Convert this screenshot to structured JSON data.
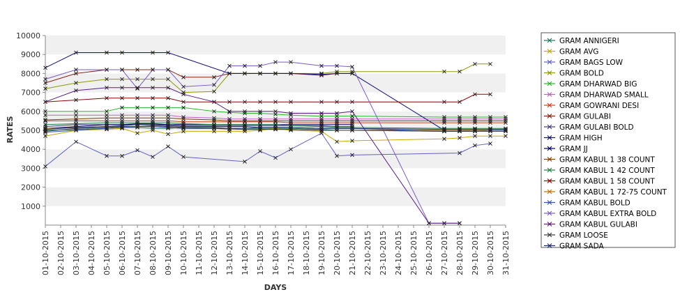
{
  "chart_data": {
    "type": "line",
    "title": "",
    "xlabel": "DAYS",
    "ylabel": "RATES",
    "ylim": [
      0,
      10000
    ],
    "yticks": [
      1000,
      2000,
      3000,
      4000,
      5000,
      6000,
      7000,
      8000,
      9000,
      10000
    ],
    "grid": "horizontal bands",
    "legend": "right",
    "categories": [
      "01-10-2015",
      "02-10-2015",
      "03-10-2015",
      "04-10-2015",
      "05-10-2015",
      "06-10-2015",
      "07-10-2015",
      "08-10-2015",
      "09-10-2015",
      "10-10-2015",
      "11-10-2015",
      "12-10-2015",
      "13-10-2015",
      "14-10-2015",
      "15-10-2015",
      "16-10-2015",
      "17-10-2015",
      "18-10-2015",
      "19-10-2015",
      "20-10-2015",
      "21-10-2015",
      "22-10-2015",
      "23-10-2015",
      "24-10-2015",
      "25-10-2015",
      "26-10-2015",
      "27-10-2015",
      "28-10-2015",
      "29-10-2015",
      "30-10-2015",
      "31-10-2015"
    ],
    "series": [
      {
        "name": "GRAM ANNIGERI",
        "color": "#1a7a5a",
        "values": [
          5000,
          null,
          5050,
          null,
          5100,
          5150,
          5150,
          5100,
          5100,
          5150,
          null,
          5150,
          5100,
          5100,
          5100,
          5100,
          5100,
          null,
          5050,
          5000,
          5000,
          null,
          null,
          null,
          null,
          null,
          4950,
          4950,
          5000,
          5000,
          5000
        ]
      },
      {
        "name": "GRAM AVG",
        "color": "#c9a800",
        "values": [
          4700,
          null,
          5000,
          null,
          5050,
          5100,
          4850,
          5000,
          4800,
          4950,
          null,
          4950,
          4950,
          4950,
          5000,
          5100,
          5000,
          null,
          4950,
          4400,
          4450,
          null,
          null,
          null,
          null,
          null,
          4550,
          4600,
          4700,
          4700,
          4700
        ]
      },
      {
        "name": "GRAM BAGS LOW",
        "color": "#6060c8",
        "values": [
          3100,
          null,
          4400,
          null,
          3650,
          3650,
          3950,
          3600,
          4150,
          3600,
          null,
          null,
          null,
          3350,
          3900,
          3550,
          4000,
          null,
          4850,
          3650,
          3700,
          null,
          null,
          null,
          null,
          null,
          null,
          3800,
          4200,
          4300,
          null
        ]
      },
      {
        "name": "GRAM BOLD",
        "color": "#8b9a00",
        "values": [
          7200,
          null,
          7500,
          null,
          7700,
          7700,
          7700,
          7700,
          7700,
          7000,
          null,
          7050,
          8000,
          8000,
          8000,
          8000,
          8000,
          null,
          8000,
          8100,
          8100,
          null,
          null,
          null,
          null,
          null,
          8100,
          8100,
          8500,
          8500,
          null
        ]
      },
      {
        "name": "GRAM DHARWAD BIG",
        "color": "#22bb22",
        "values": [
          6000,
          null,
          6000,
          null,
          6000,
          6200,
          6200,
          6200,
          6200,
          6200,
          null,
          6000,
          5950,
          5900,
          5900,
          5850,
          5800,
          null,
          5750,
          5750,
          5750,
          null,
          null,
          null,
          null,
          null,
          5700,
          5700,
          5700,
          5700,
          5700
        ]
      },
      {
        "name": "GRAM DHARWAD SMALL",
        "color": "#c060c0",
        "values": [
          5800,
          null,
          5800,
          null,
          5800,
          5800,
          5800,
          5800,
          5800,
          5700,
          null,
          5650,
          5600,
          5600,
          5600,
          5600,
          5600,
          null,
          5600,
          5600,
          5600,
          null,
          null,
          null,
          null,
          null,
          5600,
          5600,
          5600,
          5600,
          5600
        ]
      },
      {
        "name": "GRAM GOWRANI DESI",
        "color": "#d04010",
        "values": [
          5500,
          null,
          5500,
          null,
          5500,
          5500,
          5500,
          5500,
          5500,
          5450,
          null,
          5450,
          5450,
          5450,
          5450,
          5450,
          5400,
          null,
          5400,
          5400,
          5400,
          null,
          null,
          null,
          null,
          null,
          5400,
          5400,
          5400,
          5400,
          5400
        ]
      },
      {
        "name": "GRAM GULABI",
        "color": "#8b2010",
        "values": [
          7500,
          null,
          8000,
          null,
          8200,
          8200,
          8200,
          8200,
          8200,
          7800,
          null,
          7800,
          8000,
          8000,
          8000,
          8000,
          8000,
          null,
          7900,
          8000,
          8000,
          null,
          null,
          null,
          null,
          null,
          null,
          null,
          null,
          null,
          null
        ]
      },
      {
        "name": "GRAM GULABI BOLD",
        "color": "#404080",
        "values": [
          5200,
          null,
          5300,
          null,
          5300,
          5300,
          5300,
          5300,
          5300,
          5250,
          null,
          5250,
          5250,
          5250,
          5250,
          5250,
          5250,
          null,
          5250,
          5200,
          5200,
          null,
          null,
          null,
          null,
          null,
          null,
          null,
          null,
          null,
          null
        ]
      },
      {
        "name": "GRAM HIGH",
        "color": "#101080",
        "values": [
          8300,
          null,
          9100,
          null,
          9100,
          9100,
          null,
          9100,
          9100,
          null,
          null,
          null,
          8000,
          8000,
          8000,
          8000,
          8000,
          null,
          7950,
          8000,
          8000,
          null,
          null,
          null,
          null,
          null,
          5000,
          5000,
          5000,
          5000,
          5000
        ]
      },
      {
        "name": "GRAM JJ",
        "color": "#000060",
        "values": [
          5100,
          null,
          5200,
          null,
          5300,
          5300,
          5350,
          5350,
          5300,
          5300,
          null,
          5300,
          5300,
          5300,
          5300,
          5300,
          5300,
          null,
          5300,
          5300,
          5300,
          null,
          null,
          null,
          null,
          null,
          null,
          null,
          null,
          null,
          null
        ]
      },
      {
        "name": "GRAM KABUL 1 38 COUNT",
        "color": "#804000",
        "values": [
          5550,
          null,
          5600,
          null,
          5650,
          5650,
          5650,
          5650,
          5650,
          5600,
          null,
          5550,
          5500,
          5500,
          5500,
          5500,
          5500,
          null,
          5500,
          5500,
          5500,
          null,
          null,
          null,
          null,
          null,
          5500,
          5500,
          5500,
          5500,
          5500
        ]
      },
      {
        "name": "GRAM KABUL 1 42 COUNT",
        "color": "#208040",
        "values": [
          5300,
          null,
          5350,
          null,
          5400,
          5400,
          5400,
          5400,
          5400,
          5350,
          null,
          5300,
          5300,
          5300,
          5300,
          5300,
          5250,
          null,
          5200,
          5150,
          5150,
          null,
          null,
          null,
          null,
          null,
          5100,
          5100,
          5100,
          5100,
          5100
        ]
      },
      {
        "name": "GRAM KABUL 1 58 COUNT",
        "color": "#900000",
        "values": [
          6500,
          null,
          6600,
          null,
          6700,
          6700,
          6700,
          6700,
          6700,
          6500,
          null,
          6500,
          6500,
          6500,
          6500,
          6500,
          6500,
          null,
          6500,
          6500,
          6500,
          null,
          null,
          null,
          null,
          null,
          6500,
          6500,
          6900,
          6900,
          null
        ]
      },
      {
        "name": "GRAM KABUL 1 72-75 COUNT",
        "color": "#c07000",
        "values": [
          5100,
          null,
          5150,
          null,
          5200,
          5200,
          5200,
          5200,
          5150,
          5100,
          null,
          5100,
          5050,
          5050,
          5050,
          5050,
          5050,
          null,
          5000,
          5000,
          5000,
          null,
          null,
          null,
          null,
          null,
          5000,
          5000,
          5000,
          5000,
          5000
        ]
      },
      {
        "name": "GRAM KABUL BOLD",
        "color": "#3050c0",
        "values": [
          4900,
          null,
          5000,
          null,
          5100,
          5150,
          5200,
          5200,
          5150,
          5100,
          null,
          5100,
          5100,
          5100,
          5150,
          5150,
          5150,
          null,
          5100,
          5100,
          5100,
          null,
          null,
          null,
          null,
          null,
          4950,
          4950,
          4950,
          5000,
          5000
        ]
      },
      {
        "name": "GRAM KABUL EXTRA BOLD",
        "color": "#7a5ac8",
        "values": [
          7700,
          null,
          8200,
          null,
          8200,
          8200,
          7200,
          8200,
          8200,
          7300,
          null,
          7400,
          8400,
          8400,
          8400,
          8600,
          8600,
          null,
          8400,
          8400,
          8350,
          null,
          null,
          null,
          null,
          100,
          100,
          100,
          null,
          null,
          null
        ]
      },
      {
        "name": "GRAM KABUL GULABI",
        "color": "#5a1a8a",
        "values": [
          6500,
          null,
          7100,
          null,
          7250,
          7250,
          7250,
          7250,
          7250,
          6900,
          null,
          6500,
          6000,
          6000,
          6000,
          6000,
          5900,
          null,
          5900,
          5900,
          6000,
          null,
          null,
          null,
          null,
          100,
          100,
          100,
          null,
          null,
          null
        ]
      },
      {
        "name": "GRAM LOOSE",
        "color": "#3a3a3a",
        "values": [
          4950,
          null,
          5100,
          null,
          5150,
          5200,
          5200,
          5250,
          5200,
          5150,
          null,
          5100,
          5100,
          5050,
          5050,
          5050,
          5050,
          null,
          5000,
          5000,
          5000,
          null,
          null,
          null,
          null,
          null,
          4950,
          4950,
          4950,
          4950,
          4950
        ]
      },
      {
        "name": "GRAM SADA",
        "color": "#1a2a6a",
        "values": [
          5050,
          null,
          5150,
          null,
          5200,
          5250,
          5300,
          5300,
          5250,
          5200,
          null,
          5200,
          5200,
          5200,
          5150,
          5150,
          5150,
          null,
          5100,
          5100,
          5100,
          null,
          null,
          null,
          null,
          null,
          5050,
          5050,
          5050,
          5050,
          5050
        ]
      }
    ]
  }
}
